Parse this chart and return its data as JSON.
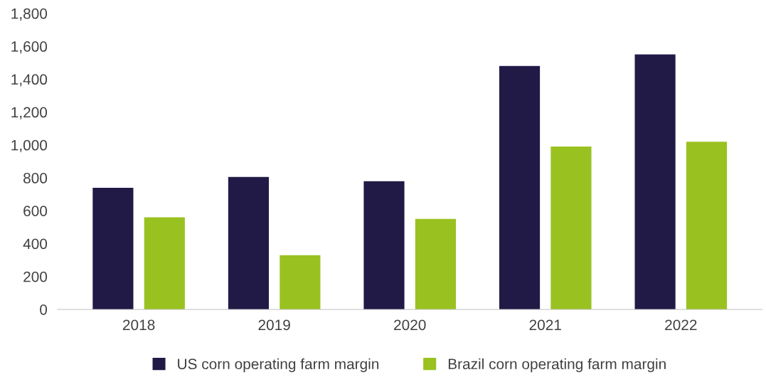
{
  "chart_data": {
    "type": "bar",
    "categories": [
      "2018",
      "2019",
      "2020",
      "2021",
      "2022"
    ],
    "series": [
      {
        "name": "US corn operating farm margin",
        "color": "#211a47",
        "values": [
          740,
          805,
          780,
          1480,
          1550
        ]
      },
      {
        "name": "Brazil corn operating farm margin",
        "color": "#99c221",
        "values": [
          560,
          330,
          550,
          990,
          1020
        ]
      }
    ],
    "ylim": [
      0,
      1800
    ],
    "yticks": [
      {
        "value": 0,
        "label": "0"
      },
      {
        "value": 200,
        "label": "200"
      },
      {
        "value": 400,
        "label": "400"
      },
      {
        "value": 600,
        "label": "600"
      },
      {
        "value": 800,
        "label": "800"
      },
      {
        "value": 1000,
        "label": "1,000"
      },
      {
        "value": 1200,
        "label": "1,200"
      },
      {
        "value": 1400,
        "label": "1,400"
      },
      {
        "value": 1600,
        "label": "1,600"
      },
      {
        "value": 1800,
        "label": "1,800"
      }
    ],
    "grid": false,
    "legend": "bottom"
  }
}
